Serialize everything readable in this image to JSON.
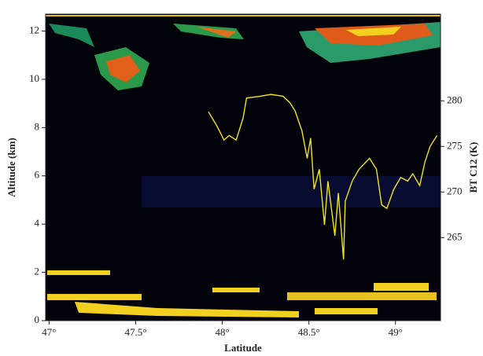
{
  "chart_data": {
    "type": "line",
    "x_label": "Latitude",
    "y_label": "Altitude (km)",
    "y2_label": "BT C12 (K)",
    "xlim": [
      46.98,
      49.26
    ],
    "xticks": [
      {
        "value": 47,
        "label": "47°"
      },
      {
        "value": 47.5,
        "label": "47.5°"
      },
      {
        "value": 48,
        "label": "48°"
      },
      {
        "value": 48.5,
        "label": "48.5°"
      },
      {
        "value": 49,
        "label": "49°"
      }
    ],
    "ylim": [
      0,
      12.7
    ],
    "yticks": [
      0,
      2,
      4,
      6,
      8,
      10,
      12
    ],
    "y2lim": [
      255.9,
      289.5
    ],
    "y2ticks": [
      265,
      270,
      275,
      280
    ],
    "series": [
      {
        "name": "BT C12",
        "color": "#f2e21c",
        "axis": "y2",
        "x": [
          47.92,
          47.97,
          48.01,
          48.04,
          48.08,
          48.12,
          48.14,
          48.22,
          48.28,
          48.35,
          48.39,
          48.42,
          48.46,
          48.49,
          48.51,
          48.53,
          48.56,
          48.59,
          48.61,
          48.65,
          48.67,
          48.7,
          48.71,
          48.75,
          48.79,
          48.81,
          48.85,
          48.89,
          48.92,
          48.95,
          48.99,
          49.03,
          49.07,
          49.1,
          49.14,
          49.17,
          49.2,
          49.24
        ],
        "values": [
          278.8,
          277.2,
          275.7,
          276.2,
          275.7,
          278.1,
          280.3,
          280.5,
          280.7,
          280.5,
          279.8,
          278.9,
          276.7,
          273.7,
          275.9,
          270.3,
          272.5,
          266.4,
          271.2,
          265.2,
          269.9,
          262.6,
          269.0,
          271.2,
          272.5,
          272.9,
          273.7,
          272.5,
          268.6,
          268.2,
          270.3,
          271.6,
          271.2,
          272.0,
          270.7,
          273.3,
          275.0,
          276.2
        ]
      }
    ]
  }
}
